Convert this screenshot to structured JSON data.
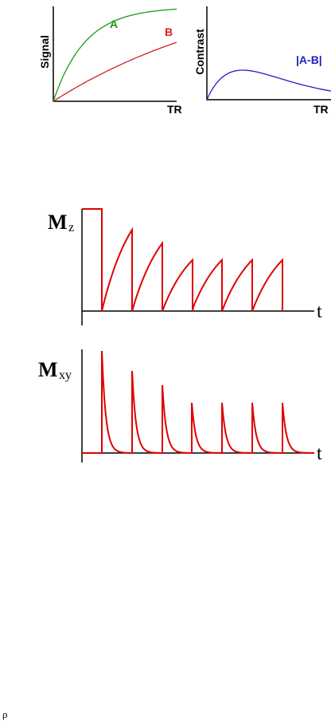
{
  "signal_panel": {
    "y_label": "Signal",
    "x_label": "TR",
    "curves": [
      {
        "label": "A"
      },
      {
        "label": "B"
      }
    ]
  },
  "contrast_panel": {
    "y_label": "Contrast",
    "x_label": "TR",
    "curve_label": "|A-B|"
  },
  "mz_panel": {
    "label_main": "M",
    "label_sub": "z",
    "x_label": "t"
  },
  "mxy_panel": {
    "label_main": "M",
    "label_sub": "xy",
    "x_label": "t"
  },
  "footer": "ρ"
}
